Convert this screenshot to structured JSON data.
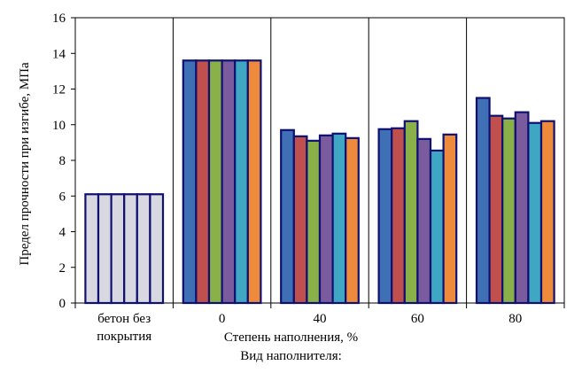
{
  "chart_data": {
    "type": "bar",
    "xlabel": "Степень наполнения, %",
    "ylabel": "Предел прочности при изгибе, МПа",
    "footer": "Вид наполнителя:",
    "ylim": [
      0,
      16
    ],
    "yticks": [
      "0",
      "2",
      "4",
      "6",
      "8",
      "10",
      "12",
      "14",
      "16"
    ],
    "grid": false,
    "categories": [
      [
        "бетон без",
        "покрытия"
      ],
      [
        "0"
      ],
      [
        "40"
      ],
      [
        "60"
      ],
      [
        "80"
      ]
    ],
    "series": [
      {
        "color": "#3F6FB5",
        "values": [
          6.1,
          13.6,
          9.7,
          9.75,
          11.5
        ]
      },
      {
        "color": "#C0504D",
        "values": [
          6.1,
          13.6,
          9.35,
          9.8,
          10.5
        ]
      },
      {
        "color": "#8AB04A",
        "values": [
          6.1,
          13.6,
          9.1,
          10.2,
          10.35
        ]
      },
      {
        "color": "#7A5C9E",
        "values": [
          6.1,
          13.6,
          9.4,
          9.2,
          10.7
        ]
      },
      {
        "color": "#3FA6C4",
        "values": [
          6.1,
          13.6,
          9.5,
          8.55,
          10.1
        ]
      },
      {
        "color": "#EE8A3C",
        "values": [
          6.1,
          13.6,
          9.25,
          9.45,
          10.2
        ]
      }
    ],
    "baseline_fill": "#D8D8E0",
    "bar_outline": "#101070"
  }
}
